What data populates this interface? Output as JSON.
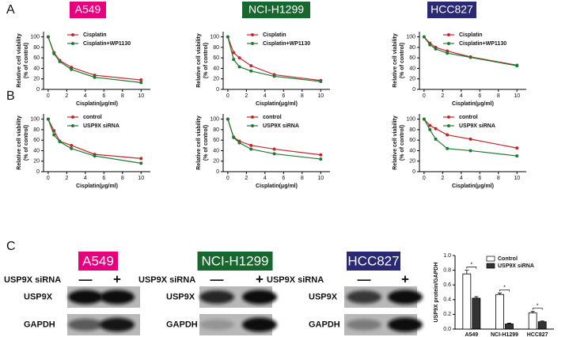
{
  "panels": [
    "A",
    "B",
    "C"
  ],
  "chart_data": [
    {
      "type": "line",
      "title": "A549",
      "title_color": "#e6007e",
      "x": [
        0,
        0.625,
        1.25,
        2.5,
        5,
        10
      ],
      "xlim": [
        -0.5,
        11
      ],
      "xticks": [
        0,
        2,
        4,
        6,
        8,
        10
      ],
      "ylim": [
        0,
        110
      ],
      "yticks": [
        0,
        20,
        40,
        60,
        80,
        100
      ],
      "xlabel": "Cisplatin(μg/ml)",
      "ylabel": [
        "Relative cell viability",
        "(% of control)"
      ],
      "series": [
        {
          "name": "Cisplatin",
          "color": "#c1272d",
          "values": [
            100,
            70,
            55,
            42,
            27,
            18
          ]
        },
        {
          "name": "Cisplatin+WP1130",
          "color": "#1e7b31",
          "values": [
            100,
            68,
            53,
            38,
            23,
            13
          ]
        }
      ]
    },
    {
      "type": "line",
      "title": "NCI-H1299",
      "title_color": "#17672e",
      "x": [
        0,
        0.625,
        1.25,
        2.5,
        5,
        10
      ],
      "xlim": [
        -0.5,
        11
      ],
      "xticks": [
        0,
        2,
        4,
        6,
        8,
        10
      ],
      "ylim": [
        0,
        110
      ],
      "yticks": [
        0,
        20,
        40,
        60,
        80,
        100
      ],
      "xlabel": "Cisplatin(μg/ml)",
      "ylabel": [
        "Relative cell viability",
        "(% of control)"
      ],
      "series": [
        {
          "name": "Cisplatin",
          "color": "#c1272d",
          "values": [
            100,
            70,
            60,
            45,
            28,
            17
          ]
        },
        {
          "name": "Cisplatin+WP1130",
          "color": "#1e7b31",
          "values": [
            100,
            57,
            43,
            35,
            25,
            15
          ]
        }
      ]
    },
    {
      "type": "line",
      "title": "HCC827",
      "title_color": "#2a2973",
      "x": [
        0,
        0.625,
        1.25,
        2.5,
        5,
        10
      ],
      "xlim": [
        -0.5,
        11
      ],
      "xticks": [
        0,
        2,
        4,
        6,
        8,
        10
      ],
      "ylim": [
        0,
        110
      ],
      "yticks": [
        0,
        20,
        40,
        60,
        80,
        100
      ],
      "xlabel": "Cisplatin(μg/ml)",
      "ylabel": [
        "Relative cell viability",
        "(% of control)"
      ],
      "series": [
        {
          "name": "Cisplatin",
          "color": "#c1272d",
          "values": [
            100,
            88,
            80,
            73,
            62,
            46
          ]
        },
        {
          "name": "Cisplatin+WP1130",
          "color": "#1e7b31",
          "values": [
            100,
            85,
            77,
            69,
            61,
            45
          ]
        }
      ]
    },
    {
      "type": "line",
      "x": [
        0,
        0.625,
        1.25,
        2.5,
        5,
        10
      ],
      "xlim": [
        -0.5,
        11
      ],
      "xticks": [
        0,
        2,
        4,
        6,
        8,
        10
      ],
      "ylim": [
        0,
        110
      ],
      "yticks": [
        0,
        20,
        40,
        60,
        80,
        100
      ],
      "xlabel": "Cisplatin(μg/ml)",
      "ylabel": [
        "Relative cell viability",
        "(% of control)"
      ],
      "series": [
        {
          "name": "control",
          "color": "#c1272d",
          "values": [
            100,
            78,
            58,
            50,
            33,
            25
          ]
        },
        {
          "name": "USP9X siRNA",
          "color": "#1e7b31",
          "values": [
            100,
            70,
            57,
            44,
            30,
            16
          ]
        }
      ]
    },
    {
      "type": "line",
      "x": [
        0,
        0.625,
        1.25,
        2.5,
        5,
        10
      ],
      "xlim": [
        -0.5,
        11
      ],
      "xticks": [
        0,
        2,
        4,
        6,
        8,
        10
      ],
      "ylim": [
        0,
        110
      ],
      "yticks": [
        0,
        20,
        40,
        60,
        80,
        100
      ],
      "xlabel": "Cisplatin(μg/ml)",
      "ylabel": [
        "Relative cell viability",
        "(% of control)"
      ],
      "series": [
        {
          "name": "control",
          "color": "#c1272d",
          "values": [
            100,
            66,
            58,
            50,
            43,
            32
          ]
        },
        {
          "name": "USP9X siRNA",
          "color": "#1e7b31",
          "values": [
            100,
            65,
            55,
            43,
            34,
            24
          ]
        }
      ]
    },
    {
      "type": "line",
      "x": [
        0,
        0.625,
        1.25,
        2.5,
        5,
        10
      ],
      "xlim": [
        -0.5,
        11
      ],
      "xticks": [
        0,
        2,
        4,
        6,
        8,
        10
      ],
      "ylim": [
        0,
        110
      ],
      "yticks": [
        0,
        20,
        40,
        60,
        80,
        100
      ],
      "xlabel": "Cisplatin(μg/ml)",
      "ylabel": [
        "Relative cell viability",
        "(% of control)"
      ],
      "series": [
        {
          "name": "control",
          "color": "#c1272d",
          "values": [
            100,
            88,
            82,
            70,
            62,
            45
          ]
        },
        {
          "name": "USP9X siRNA",
          "color": "#1e7b31",
          "values": [
            100,
            80,
            62,
            44,
            40,
            30
          ]
        }
      ]
    },
    {
      "type": "bar",
      "categories": [
        "A549",
        "NCI-H1299",
        "HCC827"
      ],
      "ylim": [
        0,
        1
      ],
      "yticks": [
        {
          "value": 0,
          "label": "0.0"
        },
        0.2,
        0.4,
        0.6,
        0.8,
        {
          "value": 1,
          "label": "1.0"
        }
      ],
      "ylabel": "USP9X protein/GAPDH",
      "series": [
        {
          "name": "Control",
          "color": "#ffffff",
          "values": [
            0.75,
            0.47,
            0.22
          ],
          "errors": [
            0.05,
            0.02,
            0.02
          ]
        },
        {
          "name": "USP9X siRNA",
          "color": "#333333",
          "values": [
            0.42,
            0.07,
            0.1
          ],
          "errors": [
            0.02,
            0.01,
            0.01
          ]
        }
      ],
      "annotations": [
        "*",
        "*",
        "*"
      ]
    }
  ],
  "blots": [
    {
      "title": "A549",
      "title_color": "#e6007e",
      "condition": "USP9X siRNA",
      "lanes": [
        "—",
        "+"
      ],
      "rows": [
        "USP9X",
        "GAPDH"
      ]
    },
    {
      "title": "NCI-H1299",
      "title_color": "#17672e",
      "condition": "USP9X siRNA",
      "lanes": [
        "—",
        "+"
      ],
      "rows": [
        "USP9X",
        "GAPDH"
      ]
    },
    {
      "title": "HCC827",
      "title_color": "#2a2973",
      "condition": "USP9X siRNA",
      "lanes": [
        "—",
        "+"
      ],
      "rows": [
        "USP9X",
        "GAPDH"
      ]
    }
  ]
}
